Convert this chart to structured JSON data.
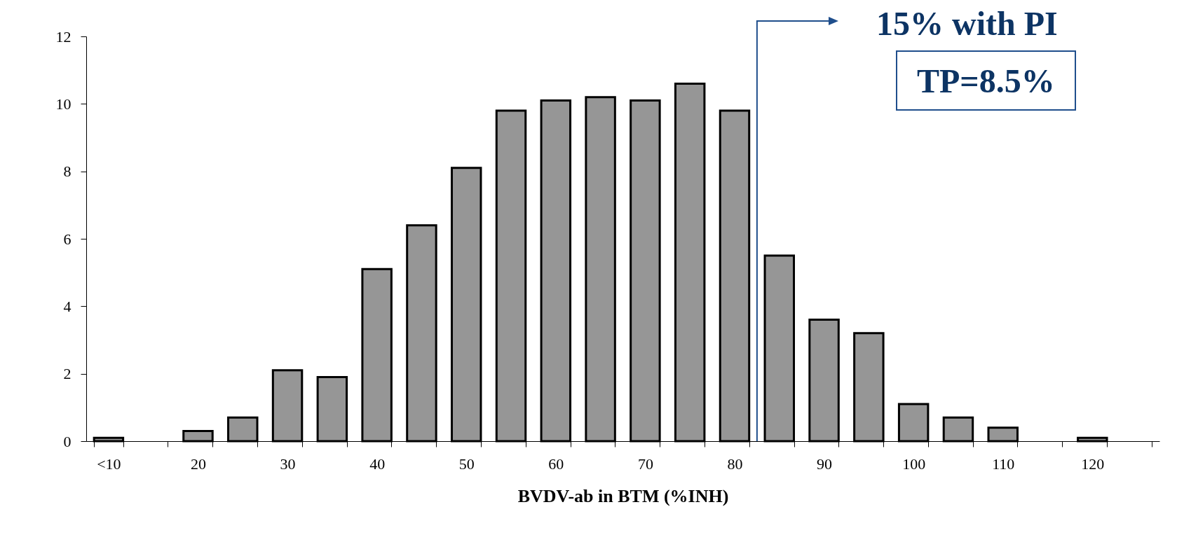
{
  "chart_data": {
    "type": "bar",
    "categories": [
      "<10",
      null,
      "20",
      null,
      "30",
      null,
      "40",
      null,
      "50",
      null,
      "60",
      null,
      "70",
      null,
      "80",
      null,
      "90",
      null,
      "100",
      null,
      "110",
      null,
      "120",
      null
    ],
    "values": [
      0.1,
      null,
      0.3,
      0.7,
      2.1,
      1.9,
      5.1,
      6.4,
      8.1,
      9.8,
      10.1,
      10.2,
      10.1,
      10.6,
      9.8,
      5.5,
      3.6,
      3.2,
      1.1,
      0.7,
      0.4,
      null,
      0.1,
      null
    ],
    "color": "#969696",
    "xlabel": "BVDV-ab in BTM (%INH)",
    "ylim": [
      0,
      12
    ],
    "yticks": [
      0,
      2,
      4,
      6,
      8,
      10,
      12
    ],
    "grid": false,
    "annotations": [
      "15% with PI",
      "TP=8.5%"
    ]
  }
}
